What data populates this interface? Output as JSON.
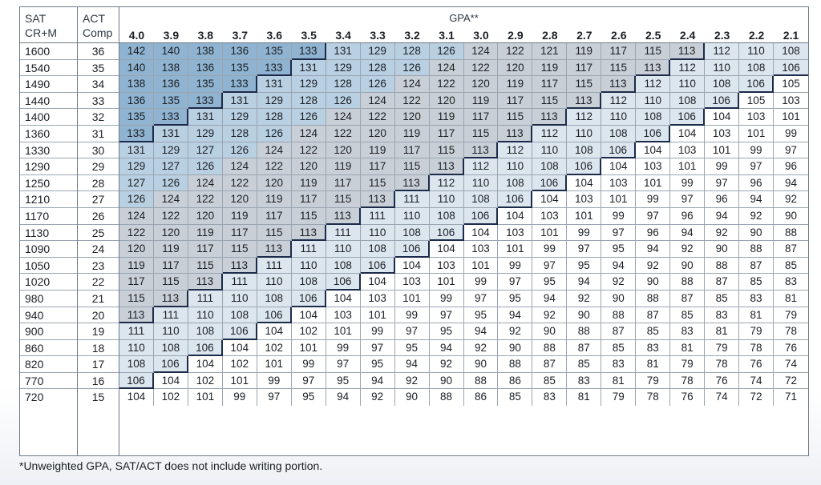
{
  "headers": {
    "sat_line1": "SAT",
    "sat_line2": "CR+M",
    "act_line1": "ACT",
    "act_line2": "Comp",
    "gpa": "GPA**"
  },
  "gpa_columns": [
    "4.0",
    "3.9",
    "3.8",
    "3.7",
    "3.6",
    "3.5",
    "3.4",
    "3.3",
    "3.2",
    "3.1",
    "3.0",
    "2.9",
    "2.8",
    "2.7",
    "2.6",
    "2.5",
    "2.4",
    "2.3",
    "2.2",
    "2.1"
  ],
  "sat": [
    "1600",
    "1540",
    "1490",
    "1440",
    "1400",
    "1360",
    "1330",
    "1290",
    "1250",
    "1210",
    "1170",
    "1130",
    "1090",
    "1050",
    "1020",
    "980",
    "940",
    "900",
    "860",
    "820",
    "770",
    "720"
  ],
  "act": [
    "36",
    "35",
    "34",
    "33",
    "32",
    "31",
    "30",
    "29",
    "28",
    "27",
    "26",
    "25",
    "24",
    "23",
    "22",
    "21",
    "20",
    "19",
    "18",
    "17",
    "16",
    "15"
  ],
  "rows": [
    [
      142,
      140,
      138,
      136,
      135,
      133,
      131,
      129,
      128,
      126,
      124,
      122,
      121,
      119,
      117,
      115,
      113,
      112,
      110,
      108
    ],
    [
      140,
      138,
      136,
      135,
      133,
      131,
      129,
      128,
      126,
      124,
      122,
      120,
      119,
      117,
      115,
      113,
      112,
      110,
      108,
      106
    ],
    [
      138,
      136,
      135,
      133,
      131,
      129,
      128,
      126,
      124,
      122,
      120,
      119,
      117,
      115,
      113,
      112,
      110,
      108,
      106,
      105
    ],
    [
      136,
      135,
      133,
      131,
      129,
      128,
      126,
      124,
      122,
      120,
      119,
      117,
      115,
      113,
      112,
      110,
      108,
      106,
      105,
      103
    ],
    [
      135,
      133,
      131,
      129,
      128,
      126,
      124,
      122,
      120,
      119,
      117,
      115,
      113,
      112,
      110,
      108,
      106,
      104,
      103,
      101
    ],
    [
      133,
      131,
      129,
      128,
      126,
      124,
      122,
      120,
      119,
      117,
      115,
      113,
      112,
      110,
      108,
      106,
      104,
      103,
      101,
      99
    ],
    [
      131,
      129,
      127,
      126,
      124,
      122,
      120,
      119,
      117,
      115,
      113,
      112,
      110,
      108,
      106,
      104,
      103,
      101,
      99,
      97
    ],
    [
      129,
      127,
      126,
      124,
      122,
      120,
      119,
      117,
      115,
      113,
      112,
      110,
      108,
      106,
      104,
      103,
      101,
      99,
      97,
      96
    ],
    [
      127,
      126,
      124,
      122,
      120,
      119,
      117,
      115,
      113,
      112,
      110,
      108,
      106,
      104,
      103,
      101,
      99,
      97,
      96,
      94
    ],
    [
      126,
      124,
      122,
      120,
      119,
      117,
      115,
      113,
      111,
      110,
      108,
      106,
      104,
      103,
      101,
      99,
      97,
      96,
      94,
      92
    ],
    [
      124,
      122,
      120,
      119,
      117,
      115,
      113,
      111,
      110,
      108,
      106,
      104,
      103,
      101,
      99,
      97,
      96,
      94,
      92,
      90
    ],
    [
      122,
      120,
      119,
      117,
      115,
      113,
      111,
      110,
      108,
      106,
      104,
      103,
      101,
      99,
      97,
      96,
      94,
      92,
      90,
      88
    ],
    [
      120,
      119,
      117,
      115,
      113,
      111,
      110,
      108,
      106,
      104,
      103,
      101,
      99,
      97,
      95,
      94,
      92,
      90,
      88,
      87
    ],
    [
      119,
      117,
      115,
      113,
      111,
      110,
      108,
      106,
      104,
      103,
      101,
      99,
      97,
      95,
      94,
      92,
      90,
      88,
      87,
      85
    ],
    [
      117,
      115,
      113,
      111,
      110,
      108,
      106,
      104,
      103,
      101,
      99,
      97,
      95,
      94,
      92,
      90,
      88,
      87,
      85,
      83
    ],
    [
      115,
      113,
      111,
      110,
      108,
      106,
      104,
      103,
      101,
      99,
      97,
      95,
      94,
      92,
      90,
      88,
      87,
      85,
      83,
      81
    ],
    [
      113,
      111,
      110,
      108,
      106,
      104,
      103,
      101,
      99,
      97,
      95,
      94,
      92,
      90,
      88,
      87,
      85,
      83,
      81,
      79
    ],
    [
      111,
      110,
      108,
      106,
      104,
      102,
      101,
      99,
      97,
      95,
      94,
      92,
      90,
      88,
      87,
      85,
      83,
      81,
      79,
      78
    ],
    [
      110,
      108,
      106,
      104,
      102,
      101,
      99,
      97,
      95,
      94,
      92,
      90,
      88,
      87,
      85,
      83,
      81,
      79,
      78,
      76
    ],
    [
      108,
      106,
      104,
      102,
      101,
      99,
      97,
      95,
      94,
      92,
      90,
      88,
      87,
      85,
      83,
      81,
      79,
      78,
      76,
      74
    ],
    [
      106,
      104,
      102,
      101,
      99,
      97,
      95,
      94,
      92,
      90,
      88,
      86,
      85,
      83,
      81,
      79,
      78,
      76,
      74,
      72
    ],
    [
      104,
      102,
      101,
      99,
      97,
      95,
      94,
      92,
      90,
      88,
      86,
      85,
      83,
      81,
      79,
      78,
      76,
      74,
      72,
      71
    ]
  ],
  "footnote": "*Unweighted GPA, SAT/ACT does not include writing portion."
}
